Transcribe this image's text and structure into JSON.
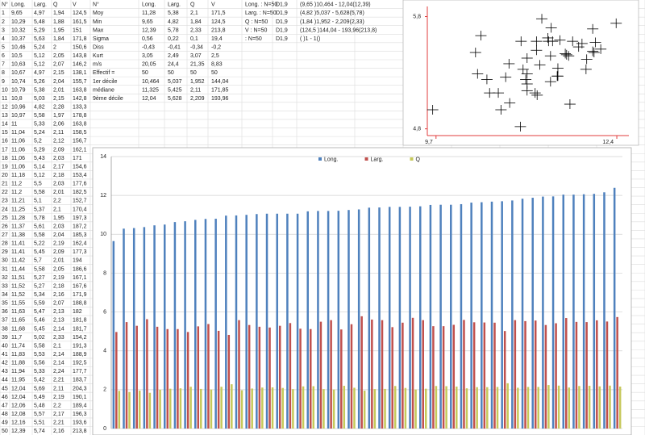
{
  "sheet": {
    "headers": [
      "N°",
      "Long.",
      "Larg.",
      "Q",
      "V"
    ],
    "rows": [
      [
        "1",
        "9,65",
        "4,97",
        "1,94",
        "124,5"
      ],
      [
        "2",
        "10,29",
        "5,48",
        "1,88",
        "161,5"
      ],
      [
        "3",
        "10,32",
        "5,29",
        "1,95",
        "151"
      ],
      [
        "4",
        "10,37",
        "5,63",
        "1,84",
        "171,8"
      ],
      [
        "5",
        "10,46",
        "5,24",
        "2",
        "150,6"
      ],
      [
        "6",
        "10,5",
        "5,12",
        "2,05",
        "143,8"
      ],
      [
        "7",
        "10,63",
        "5,12",
        "2,07",
        "146,2"
      ],
      [
        "8",
        "10,67",
        "4,97",
        "2,15",
        "138,1"
      ],
      [
        "9",
        "10,74",
        "5,26",
        "2,04",
        "155,7"
      ],
      [
        "10",
        "10,79",
        "5,38",
        "2,01",
        "163,8"
      ],
      [
        "11",
        "10,8",
        "5,03",
        "2,15",
        "142,8"
      ],
      [
        "12",
        "10,96",
        "4,82",
        "2,28",
        "133,3"
      ],
      [
        "13",
        "10,97",
        "5,58",
        "1,97",
        "178,8"
      ],
      [
        "14",
        "11",
        "5,33",
        "2,06",
        "163,8"
      ],
      [
        "15",
        "11,04",
        "5,24",
        "2,11",
        "158,5"
      ],
      [
        "16",
        "11,06",
        "5,2",
        "2,12",
        "156,7"
      ],
      [
        "17",
        "11,06",
        "5,29",
        "2,09",
        "162,1"
      ],
      [
        "18",
        "11,06",
        "5,43",
        "2,03",
        "171"
      ],
      [
        "19",
        "11,06",
        "5,14",
        "2,17",
        "154,6"
      ],
      [
        "20",
        "11,18",
        "5,12",
        "2,18",
        "153,4"
      ],
      [
        "21",
        "11,2",
        "5,5",
        "2,03",
        "177,6"
      ],
      [
        "22",
        "11,2",
        "5,58",
        "2,01",
        "182,5"
      ],
      [
        "23",
        "11,21",
        "5,1",
        "2,2",
        "152,7"
      ],
      [
        "24",
        "11,25",
        "5,37",
        "2,1",
        "170,4"
      ],
      [
        "25",
        "11,28",
        "5,78",
        "1,95",
        "197,3"
      ],
      [
        "26",
        "11,37",
        "5,61",
        "2,03",
        "187,2"
      ],
      [
        "27",
        "11,38",
        "5,58",
        "2,04",
        "185,3"
      ],
      [
        "28",
        "11,41",
        "5,22",
        "2,19",
        "162,4"
      ],
      [
        "29",
        "11,41",
        "5,45",
        "2,09",
        "177,3"
      ],
      [
        "30",
        "11,42",
        "5,7",
        "2,01",
        "194"
      ],
      [
        "31",
        "11,44",
        "5,58",
        "2,05",
        "186,6"
      ],
      [
        "32",
        "11,51",
        "5,27",
        "2,19",
        "167,1"
      ],
      [
        "33",
        "11,52",
        "5,27",
        "2,18",
        "167,6"
      ],
      [
        "34",
        "11,52",
        "5,34",
        "2,16",
        "171,9"
      ],
      [
        "35",
        "11,55",
        "5,59",
        "2,07",
        "188,8"
      ],
      [
        "36",
        "11,63",
        "5,47",
        "2,13",
        "182"
      ],
      [
        "37",
        "11,65",
        "5,46",
        "2,13",
        "181,8"
      ],
      [
        "38",
        "11,68",
        "5,45",
        "2,14",
        "181,7"
      ],
      [
        "39",
        "11,7",
        "5,02",
        "2,33",
        "154,2"
      ],
      [
        "40",
        "11,74",
        "5,58",
        "2,1",
        "191,3"
      ],
      [
        "41",
        "11,83",
        "5,53",
        "2,14",
        "188,9"
      ],
      [
        "42",
        "11,88",
        "5,56",
        "2,14",
        "192,5"
      ],
      [
        "43",
        "11,94",
        "5,33",
        "2,24",
        "177,7"
      ],
      [
        "44",
        "11,95",
        "5,42",
        "2,21",
        "183,7"
      ],
      [
        "45",
        "12,04",
        "5,69",
        "2,11",
        "204,3"
      ],
      [
        "46",
        "12,04",
        "5,49",
        "2,19",
        "190,1"
      ],
      [
        "47",
        "12,06",
        "5,48",
        "2,2",
        "189,4"
      ],
      [
        "48",
        "12,08",
        "5,57",
        "2,17",
        "196,3"
      ],
      [
        "49",
        "12,16",
        "5,51",
        "2,21",
        "193,6"
      ],
      [
        "50",
        "12,39",
        "5,74",
        "2,16",
        "213,8"
      ]
    ]
  },
  "stats": {
    "headers": [
      "N°",
      "Long.",
      "Larg.",
      "Q",
      "V"
    ],
    "rows": [
      [
        "Moy",
        "11,28",
        "5,38",
        "2,1",
        "171,5"
      ],
      [
        "Min",
        "9,65",
        "4,82",
        "1,84",
        "124,5"
      ],
      [
        "Max",
        "12,39",
        "5,78",
        "2,33",
        "213,8"
      ],
      [
        "Sigma",
        "0,56",
        "0,22",
        "0,1",
        "19,4"
      ],
      [
        "Diss",
        "-0,43",
        "-0,41",
        "-0,34",
        "-0,2"
      ],
      [
        "Kurt",
        "3,05",
        "2,49",
        "3,07",
        "2,5"
      ],
      [
        "m/s",
        "20,05",
        "24,4",
        "21,35",
        "8,83"
      ],
      [
        "Effectif =",
        "50",
        "50",
        "50",
        "50"
      ],
      [
        "1er décile",
        "10,464",
        "5,037",
        "1,952",
        "144,04"
      ],
      [
        "médiane",
        "11,325",
        "5,425",
        "2,11",
        "171,85"
      ],
      [
        "9ème décile",
        "12,04",
        "5,628",
        "2,209",
        "193,96"
      ]
    ]
  },
  "notes": [
    [
      "Long. : N=50",
      "D1,9",
      "(9,65 )10,464 - 12,04(12,39)"
    ],
    [
      "Larg. : N=50",
      "D1,9",
      "(4,82 )5,037 - 5,628(5,78)"
    ],
    [
      "Q : N=50",
      "D1,9",
      "(1,84 )1,952 - 2,209(2,33)"
    ],
    [
      "V : N=50",
      "D1,9",
      "(124,5 )144,04 - 193,96(213,8)"
    ],
    [
      " : N=50",
      "D1,9",
      "( )1 - 1()"
    ]
  ],
  "chart_data": [
    {
      "type": "scatter",
      "x": [
        9.65,
        10.29,
        10.32,
        10.37,
        10.46,
        10.5,
        10.63,
        10.67,
        10.74,
        10.79,
        10.8,
        10.96,
        10.97,
        11,
        11.04,
        11.06,
        11.06,
        11.06,
        11.06,
        11.18,
        11.2,
        11.2,
        11.21,
        11.25,
        11.28,
        11.37,
        11.38,
        11.41,
        11.41,
        11.42,
        11.44,
        11.51,
        11.52,
        11.52,
        11.55,
        11.63,
        11.65,
        11.68,
        11.7,
        11.74,
        11.83,
        11.88,
        11.94,
        11.95,
        12.04,
        12.04,
        12.06,
        12.08,
        12.16,
        12.39
      ],
      "series": [
        {
          "color": "#000000",
          "values": [
            4.97,
            5.48,
            5.29,
            5.63,
            5.24,
            5.12,
            5.12,
            4.97,
            5.26,
            5.38,
            5.03,
            4.82,
            5.58,
            5.33,
            5.24,
            5.2,
            5.29,
            5.43,
            5.14,
            5.12,
            5.5,
            5.58,
            5.1,
            5.37,
            5.78,
            5.61,
            5.58,
            5.22,
            5.45,
            5.7,
            5.58,
            5.27,
            5.27,
            5.34,
            5.59,
            5.47,
            5.46,
            5.45,
            5.02,
            5.58,
            5.53,
            5.56,
            5.33,
            5.42,
            5.69,
            5.49,
            5.48,
            5.57,
            5.51,
            5.74
          ]
        }
      ],
      "xlim": [
        9.57,
        12.58
      ],
      "ylim": [
        4.74,
        5.89
      ],
      "xticks": [
        {
          "value": 9.7,
          "label": "9,7"
        },
        {
          "value": 12.4,
          "label": "12,4"
        }
      ],
      "yticks": [
        {
          "value": 4.8,
          "label": "4,8"
        },
        {
          "value": 5.8,
          "label": "5,8"
        }
      ],
      "axis_color": "#e03c3c"
    },
    {
      "type": "bar",
      "categories": [
        null,
        null,
        null,
        null,
        null,
        null,
        null,
        null,
        null,
        null,
        null,
        null,
        null,
        null,
        null,
        null,
        null,
        null,
        null,
        null,
        null,
        null,
        null,
        null,
        null,
        null,
        null,
        null,
        null,
        null,
        null,
        null,
        null,
        null,
        null,
        null,
        null,
        null,
        null,
        null,
        null,
        null,
        null,
        null,
        null,
        null,
        null,
        null,
        null,
        null
      ],
      "series": [
        {
          "name": "Long.",
          "color": "#4f81bd",
          "values": [
            9.65,
            10.29,
            10.32,
            10.37,
            10.46,
            10.5,
            10.63,
            10.67,
            10.74,
            10.79,
            10.8,
            10.96,
            10.97,
            11,
            11.04,
            11.06,
            11.06,
            11.06,
            11.06,
            11.18,
            11.2,
            11.2,
            11.21,
            11.25,
            11.28,
            11.37,
            11.38,
            11.41,
            11.41,
            11.42,
            11.44,
            11.51,
            11.52,
            11.52,
            11.55,
            11.63,
            11.65,
            11.68,
            11.7,
            11.74,
            11.83,
            11.88,
            11.94,
            11.95,
            12.04,
            12.04,
            12.06,
            12.08,
            12.16,
            12.39
          ]
        },
        {
          "name": "Larg.",
          "color": "#c0504d",
          "values": [
            4.97,
            5.48,
            5.29,
            5.63,
            5.24,
            5.12,
            5.12,
            4.97,
            5.26,
            5.38,
            5.03,
            4.82,
            5.58,
            5.33,
            5.24,
            5.2,
            5.29,
            5.43,
            5.14,
            5.12,
            5.5,
            5.58,
            5.1,
            5.37,
            5.78,
            5.61,
            5.58,
            5.22,
            5.45,
            5.7,
            5.58,
            5.27,
            5.27,
            5.34,
            5.59,
            5.47,
            5.46,
            5.45,
            5.02,
            5.58,
            5.53,
            5.56,
            5.33,
            5.42,
            5.69,
            5.49,
            5.48,
            5.57,
            5.51,
            5.74
          ]
        },
        {
          "name": "Q",
          "color": "#c6c95a",
          "values": [
            1.94,
            1.88,
            1.95,
            1.84,
            2,
            2.05,
            2.07,
            2.15,
            2.04,
            2.01,
            2.15,
            2.28,
            1.97,
            2.06,
            2.11,
            2.12,
            2.09,
            2.03,
            2.17,
            2.18,
            2.03,
            2.01,
            2.2,
            2.1,
            1.95,
            2.03,
            2.04,
            2.19,
            2.09,
            2.01,
            2.05,
            2.19,
            2.18,
            2.16,
            2.07,
            2.13,
            2.13,
            2.14,
            2.33,
            2.1,
            2.14,
            2.14,
            2.24,
            2.21,
            2.11,
            2.19,
            2.2,
            2.17,
            2.21,
            2.16
          ]
        }
      ],
      "ylim": [
        0,
        14
      ],
      "yticks": [
        0,
        2,
        4,
        6,
        8,
        10,
        12,
        14
      ],
      "grid": true,
      "legend": "top"
    }
  ]
}
